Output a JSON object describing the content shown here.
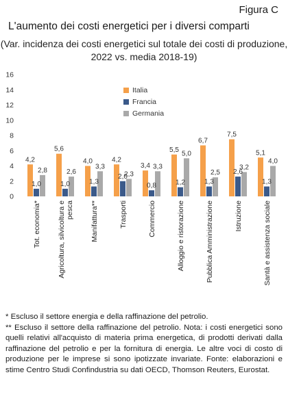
{
  "figure_label": "Figura C",
  "chart_data": {
    "type": "bar",
    "title": "L'aumento dei costi energetici per i diversi comparti",
    "subtitle": "(Var. incidenza dei costi energetici sul totale dei costi di produzione, 2022 vs. media 2018-19)",
    "categories": [
      "Tot. economia*",
      "Agricoltura, silvicoltura e pesca",
      "Manifattura**",
      "Trasporti",
      "Commercio",
      "Alloggio e ristorazione",
      "Pubblica Amministrazione",
      "Istruzione",
      "Santà e assistenza sociale"
    ],
    "category_lines": [
      [
        "Tot. economia*"
      ],
      [
        "Agricoltura, silvicoltura e",
        "pesca"
      ],
      [
        "Manifattura**"
      ],
      [
        "Trasporti"
      ],
      [
        "Commercio"
      ],
      [
        "Alloggio e ristorazione"
      ],
      [
        "Pubblica Amministrazione"
      ],
      [
        "Istruzione"
      ],
      [
        "Santà e assistenza sociale"
      ]
    ],
    "series": [
      {
        "name": "Italia",
        "color": "#f5a04a",
        "values": [
          4.2,
          5.6,
          4.0,
          4.2,
          3.4,
          5.5,
          6.7,
          7.5,
          5.1
        ],
        "labels": [
          "4,2",
          "5,6",
          "4,0",
          "4,2",
          "3,4",
          "5,5",
          "6,7",
          "7,5",
          "5,1"
        ]
      },
      {
        "name": "Francia",
        "color": "#3b5a8a",
        "values": [
          1.0,
          1.0,
          1.3,
          2.0,
          0.8,
          1.2,
          1.3,
          2.6,
          1.3
        ],
        "labels": [
          "1,0",
          "1,0",
          "1,3",
          "2,0",
          "0,8",
          "1,2",
          "1,3",
          "2,6",
          "1,3"
        ]
      },
      {
        "name": "Germania",
        "color": "#a9a9a9",
        "values": [
          2.8,
          2.6,
          3.3,
          2.3,
          3.3,
          5.0,
          2.5,
          3.2,
          4.0
        ],
        "labels": [
          "2,8",
          "2,6",
          "3,3",
          "2,3",
          "3,3",
          "5,0",
          "2,5",
          "3,2",
          "4,0"
        ]
      }
    ],
    "ylim": [
      0,
      16
    ],
    "yticks": [
      0,
      2,
      4,
      6,
      8,
      10,
      12,
      14,
      16
    ],
    "ytick_labels": [
      "0",
      "2",
      "4",
      "6",
      "8",
      "10",
      "12",
      "14",
      "16"
    ],
    "grid": false,
    "legend_position": "top-center"
  },
  "notes": [
    "* Escluso il settore energia e della raffinazione del petrolio.",
    "** Escluso il settore della raffinazione del petrolio. Nota: i costi energetici sono quelli relativi all'acquisto di materia prima energetica, di prodotti derivati dalla raffinazione del petrolio e per la fornitura di energia. Le altre voci di costo di produzione per le imprese si sono ipotizzate invariate. Fonte: elaborazioni e stime Centro Studi Confindustria su dati OECD, Thomson Reuters, Eurostat."
  ]
}
